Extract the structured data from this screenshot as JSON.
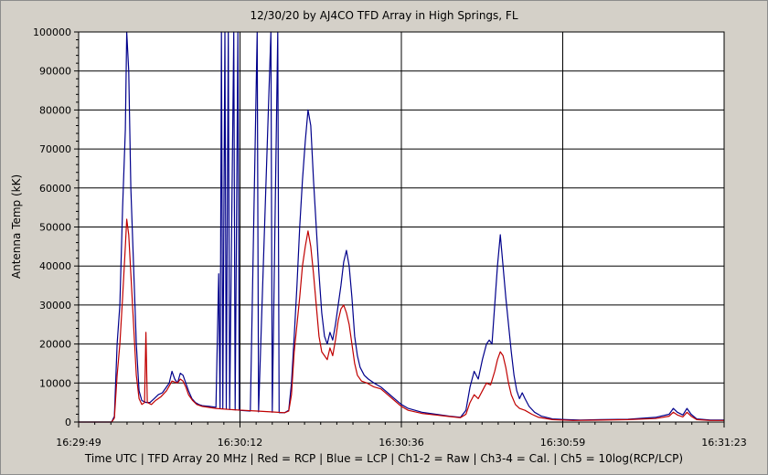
{
  "chart_data": {
    "type": "line",
    "title": "12/30/20  by  AJ4CO TFD Array  in  High Springs, FL",
    "ylabel": "Antenna Temp (kK)",
    "footer": "Time UTC | TFD Array 20 MHz | Red = RCP | Blue = LCP | Ch1-2 = Raw | Ch3-4 = Cal. | Ch5 = 10log(RCP/LCP)",
    "x_tick_labels": [
      "16:29:49",
      "16:30:12",
      "16:30:36",
      "16:30:59",
      "16:31:23"
    ],
    "y_tick_labels": [
      "0",
      "10000",
      "20000",
      "30000",
      "40000",
      "50000",
      "60000",
      "70000",
      "80000",
      "90000",
      "100000"
    ],
    "xlim_seconds": [
      0,
      94
    ],
    "ylim": [
      0,
      100000
    ],
    "grid": true,
    "colors": {
      "lcp": "#00008b",
      "rcp": "#c00000",
      "background": "#ffffff",
      "grid": "#000000"
    },
    "series": [
      {
        "key": "lcp",
        "color": "#00008b",
        "points": [
          [
            0,
            0
          ],
          [
            4.8,
            0
          ],
          [
            5.2,
            1500
          ],
          [
            5.6,
            20000
          ],
          [
            6.0,
            30000
          ],
          [
            6.4,
            55000
          ],
          [
            6.8,
            75000
          ],
          [
            7.0,
            100000
          ],
          [
            7.3,
            90000
          ],
          [
            7.6,
            60000
          ],
          [
            8.0,
            40000
          ],
          [
            8.4,
            20000
          ],
          [
            8.8,
            8000
          ],
          [
            9.2,
            5500
          ],
          [
            9.8,
            5000
          ],
          [
            10.4,
            5000
          ],
          [
            11.0,
            6000
          ],
          [
            11.6,
            7000
          ],
          [
            12.2,
            7500
          ],
          [
            12.8,
            9000
          ],
          [
            13.2,
            10000
          ],
          [
            13.6,
            13000
          ],
          [
            14.0,
            11000
          ],
          [
            14.4,
            10000
          ],
          [
            14.8,
            12500
          ],
          [
            15.2,
            12000
          ],
          [
            15.6,
            10000
          ],
          [
            16.0,
            8000
          ],
          [
            16.5,
            6000
          ],
          [
            17.0,
            5000
          ],
          [
            17.5,
            4500
          ],
          [
            18.0,
            4200
          ],
          [
            19.0,
            4000
          ],
          [
            20.0,
            3800
          ],
          [
            20.4,
            38000
          ],
          [
            20.6,
            3500
          ],
          [
            20.8,
            100000
          ],
          [
            21.0,
            3500
          ],
          [
            21.3,
            100000
          ],
          [
            21.5,
            3300
          ],
          [
            21.8,
            100000
          ],
          [
            22.0,
            3200
          ],
          [
            22.6,
            100000
          ],
          [
            22.8,
            3100
          ],
          [
            23.2,
            100000
          ],
          [
            23.4,
            3000
          ],
          [
            25.0,
            2800
          ],
          [
            26.0,
            100000
          ],
          [
            26.2,
            2600
          ],
          [
            28.0,
            100000
          ],
          [
            28.2,
            2500
          ],
          [
            29.0,
            100000
          ],
          [
            29.2,
            2400
          ],
          [
            30.0,
            2400
          ],
          [
            30.6,
            3000
          ],
          [
            31.0,
            10000
          ],
          [
            31.4,
            22000
          ],
          [
            31.8,
            35000
          ],
          [
            32.2,
            50000
          ],
          [
            32.6,
            62000
          ],
          [
            33.0,
            72000
          ],
          [
            33.4,
            80000
          ],
          [
            33.8,
            76000
          ],
          [
            34.2,
            62000
          ],
          [
            34.6,
            50000
          ],
          [
            35.0,
            38000
          ],
          [
            35.4,
            28000
          ],
          [
            35.8,
            22000
          ],
          [
            36.2,
            20000
          ],
          [
            36.6,
            23000
          ],
          [
            37.0,
            21000
          ],
          [
            37.4,
            25000
          ],
          [
            37.8,
            30000
          ],
          [
            38.2,
            35000
          ],
          [
            38.6,
            41000
          ],
          [
            39.0,
            44000
          ],
          [
            39.4,
            40000
          ],
          [
            39.8,
            32000
          ],
          [
            40.2,
            22000
          ],
          [
            40.6,
            17000
          ],
          [
            41.0,
            14000
          ],
          [
            41.6,
            12000
          ],
          [
            42.2,
            11000
          ],
          [
            43.0,
            10000
          ],
          [
            44.0,
            9000
          ],
          [
            45.0,
            7500
          ],
          [
            46.0,
            6000
          ],
          [
            47.0,
            4500
          ],
          [
            48.0,
            3500
          ],
          [
            50.0,
            2500
          ],
          [
            52.0,
            2000
          ],
          [
            54.0,
            1500
          ],
          [
            55.6,
            1200
          ],
          [
            56.4,
            3000
          ],
          [
            57.0,
            9000
          ],
          [
            57.6,
            13000
          ],
          [
            58.2,
            11000
          ],
          [
            58.8,
            16000
          ],
          [
            59.4,
            20000
          ],
          [
            59.8,
            21000
          ],
          [
            60.2,
            20000
          ],
          [
            60.6,
            30000
          ],
          [
            61.0,
            40000
          ],
          [
            61.4,
            48000
          ],
          [
            61.8,
            40000
          ],
          [
            62.2,
            32000
          ],
          [
            62.6,
            25000
          ],
          [
            63.0,
            18000
          ],
          [
            63.4,
            12000
          ],
          [
            63.8,
            8000
          ],
          [
            64.2,
            6000
          ],
          [
            64.6,
            7500
          ],
          [
            65.0,
            6000
          ],
          [
            65.6,
            4000
          ],
          [
            66.4,
            2500
          ],
          [
            67.4,
            1500
          ],
          [
            69.0,
            800
          ],
          [
            71.0,
            600
          ],
          [
            73.0,
            500
          ],
          [
            76.0,
            600
          ],
          [
            80.0,
            700
          ],
          [
            84.0,
            1200
          ],
          [
            86.0,
            2000
          ],
          [
            86.6,
            3500
          ],
          [
            87.2,
            2500
          ],
          [
            88.0,
            1800
          ],
          [
            88.6,
            3500
          ],
          [
            89.2,
            2000
          ],
          [
            90.0,
            800
          ],
          [
            92.0,
            500
          ],
          [
            94,
            500
          ]
        ]
      },
      {
        "key": "rcp",
        "color": "#c00000",
        "points": [
          [
            0,
            0
          ],
          [
            4.8,
            0
          ],
          [
            5.2,
            1000
          ],
          [
            5.6,
            12000
          ],
          [
            6.0,
            20000
          ],
          [
            6.4,
            32000
          ],
          [
            6.8,
            45000
          ],
          [
            7.0,
            52000
          ],
          [
            7.3,
            48000
          ],
          [
            7.6,
            38000
          ],
          [
            8.0,
            25000
          ],
          [
            8.4,
            12000
          ],
          [
            8.8,
            6000
          ],
          [
            9.2,
            4500
          ],
          [
            9.6,
            5000
          ],
          [
            9.8,
            23000
          ],
          [
            10.0,
            5000
          ],
          [
            10.6,
            4500
          ],
          [
            11.2,
            5500
          ],
          [
            12.0,
            6500
          ],
          [
            12.8,
            8000
          ],
          [
            13.6,
            10500
          ],
          [
            14.4,
            10000
          ],
          [
            14.8,
            11000
          ],
          [
            15.2,
            10500
          ],
          [
            15.6,
            9000
          ],
          [
            16.0,
            7000
          ],
          [
            16.6,
            5500
          ],
          [
            17.2,
            4500
          ],
          [
            18.0,
            4000
          ],
          [
            20.0,
            3500
          ],
          [
            22.0,
            3200
          ],
          [
            24.0,
            3000
          ],
          [
            26.0,
            2800
          ],
          [
            28.0,
            2600
          ],
          [
            30.0,
            2400
          ],
          [
            30.6,
            2800
          ],
          [
            31.0,
            7000
          ],
          [
            31.4,
            18000
          ],
          [
            31.8,
            25000
          ],
          [
            32.2,
            32000
          ],
          [
            32.6,
            40000
          ],
          [
            33.0,
            45000
          ],
          [
            33.4,
            49000
          ],
          [
            33.8,
            45000
          ],
          [
            34.2,
            38000
          ],
          [
            34.6,
            30000
          ],
          [
            35.0,
            22000
          ],
          [
            35.4,
            18000
          ],
          [
            35.8,
            17000
          ],
          [
            36.2,
            16000
          ],
          [
            36.6,
            19000
          ],
          [
            37.0,
            17000
          ],
          [
            37.4,
            21000
          ],
          [
            37.8,
            26000
          ],
          [
            38.2,
            29000
          ],
          [
            38.6,
            30000
          ],
          [
            39.0,
            28000
          ],
          [
            39.4,
            25000
          ],
          [
            39.8,
            20000
          ],
          [
            40.2,
            15000
          ],
          [
            40.6,
            12000
          ],
          [
            41.2,
            10500
          ],
          [
            42.0,
            10000
          ],
          [
            43.0,
            9000
          ],
          [
            44.0,
            8500
          ],
          [
            45.0,
            7000
          ],
          [
            46.0,
            5500
          ],
          [
            47.0,
            4000
          ],
          [
            48.0,
            3000
          ],
          [
            50.0,
            2200
          ],
          [
            52.0,
            1800
          ],
          [
            54.0,
            1400
          ],
          [
            55.6,
            1100
          ],
          [
            56.4,
            2000
          ],
          [
            57.0,
            5000
          ],
          [
            57.6,
            7000
          ],
          [
            58.2,
            6000
          ],
          [
            58.8,
            8000
          ],
          [
            59.4,
            10000
          ],
          [
            60.0,
            9500
          ],
          [
            60.6,
            13000
          ],
          [
            61.0,
            16000
          ],
          [
            61.4,
            18000
          ],
          [
            61.8,
            17000
          ],
          [
            62.2,
            14000
          ],
          [
            62.6,
            10000
          ],
          [
            63.0,
            7000
          ],
          [
            63.6,
            4500
          ],
          [
            64.2,
            3500
          ],
          [
            65.0,
            3000
          ],
          [
            66.0,
            2000
          ],
          [
            67.0,
            1200
          ],
          [
            69.0,
            600
          ],
          [
            72.0,
            400
          ],
          [
            76.0,
            500
          ],
          [
            80.0,
            600
          ],
          [
            84.0,
            900
          ],
          [
            86.0,
            1500
          ],
          [
            86.6,
            2500
          ],
          [
            87.2,
            1800
          ],
          [
            88.0,
            1300
          ],
          [
            88.6,
            2500
          ],
          [
            89.2,
            1500
          ],
          [
            90.0,
            600
          ],
          [
            92.0,
            400
          ],
          [
            94,
            400
          ]
        ]
      }
    ]
  }
}
